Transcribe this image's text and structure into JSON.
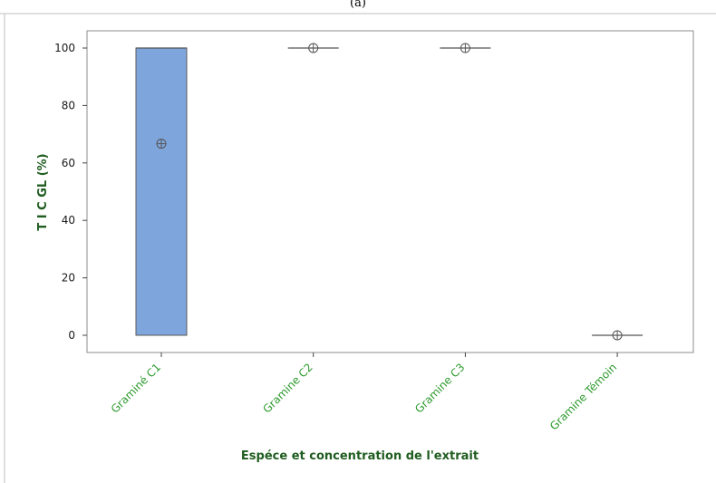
{
  "header": {
    "label": "(a)"
  },
  "chart_data": {
    "type": "box",
    "categories": [
      "Graminé C1",
      "Gramine C2",
      "Gramine C3",
      "Gramine Témoin"
    ],
    "boxes": [
      {
        "category": "Graminé C1",
        "q1": 0,
        "median": 100,
        "q3": 100,
        "mean": 66.7
      },
      {
        "category": "Gramine C2",
        "q1": 100,
        "median": 100,
        "q3": 100,
        "mean": 100
      },
      {
        "category": "Gramine C3",
        "q1": 100,
        "median": 100,
        "q3": 100,
        "mean": 100
      },
      {
        "category": "Gramine Témoin",
        "q1": 0,
        "median": 0,
        "q3": 0,
        "mean": 0
      }
    ],
    "xlabel": "Espéce et concentration de l'extrait",
    "ylabel": "T I C GL (%)",
    "ylim": [
      -5.5,
      106.5
    ],
    "yticks": [
      0,
      20,
      40,
      60,
      80,
      100
    ],
    "grid": false,
    "colors": {
      "box_fill": "#7ea6dc",
      "axis_title": "#1f5c1f",
      "tick_label_x": "#2e9a2e"
    }
  }
}
